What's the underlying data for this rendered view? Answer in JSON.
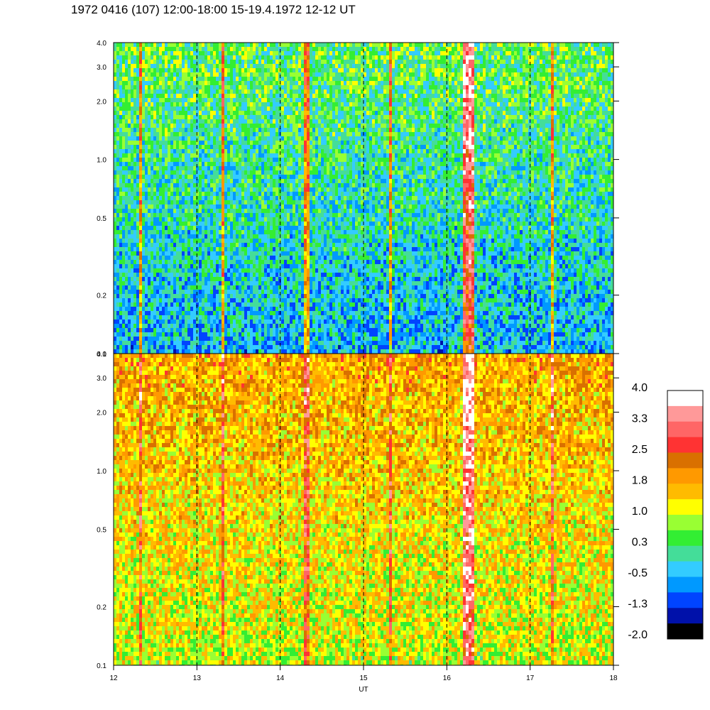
{
  "title": "1972 0416 (107) 12:00-18:00 15-19.4.1972  12-12 UT",
  "chart_data": {
    "type": "heatmap",
    "xlabel": "UT",
    "x_range": [
      12,
      18
    ],
    "x_ticks": [
      "12",
      "13",
      "14",
      "15",
      "16",
      "17",
      "18"
    ],
    "x_dashed_lines": [
      13,
      14,
      15,
      16,
      17
    ],
    "y_scale": "log",
    "y_range": [
      0.1,
      4.0
    ],
    "y_ticks": [
      {
        "value": 0.1,
        "label": "0.1"
      },
      {
        "value": 0.2,
        "label": "0.2"
      },
      {
        "value": 0.5,
        "label": "0.5"
      },
      {
        "value": 1.0,
        "label": "1.0"
      },
      {
        "value": 2.0,
        "label": "2.0"
      },
      {
        "value": 3.0,
        "label": "3.0"
      },
      {
        "value": 4.0,
        "label": "4.0"
      }
    ],
    "panels": [
      {
        "name": "upper",
        "dominant_level_low_freq": -0.5,
        "dominant_level_high_freq": 0.5
      },
      {
        "name": "lower",
        "dominant_level_low_freq": 1.0,
        "dominant_level_high_freq": 1.8
      }
    ],
    "bright_features_x": [
      12.3,
      13.3,
      14.3,
      15.3,
      16.25,
      17.25
    ],
    "colorbar": {
      "labels": [
        "4.0",
        "3.3",
        "2.5",
        "1.8",
        "1.0",
        "0.3",
        "-0.5",
        "-1.3",
        "-2.0"
      ],
      "colors": [
        "#ffffff",
        "#ff9999",
        "#ff6666",
        "#ff3333",
        "#d97000",
        "#ff9900",
        "#ffbb00",
        "#ffff00",
        "#99ff33",
        "#33ee33",
        "#44dd99",
        "#33ccff",
        "#0099ff",
        "#0044ff",
        "#0011aa",
        "#000000"
      ]
    }
  }
}
